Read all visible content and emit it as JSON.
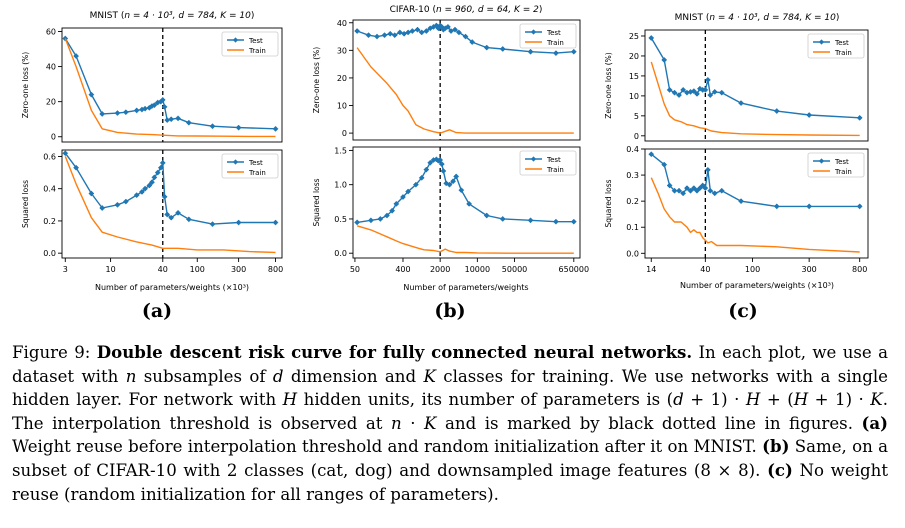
{
  "colors": {
    "test": "#1f77b4",
    "train": "#ff7f0e",
    "threshold": "#000000"
  },
  "legend": {
    "test": "Test",
    "train": "Train"
  },
  "panels": [
    {
      "label": "(a)",
      "title_prefix": "MNIST (",
      "title_math": "n = 4 · 10³, d = 784, K = 10",
      "title_suffix": ")",
      "xlabel": "Number of parameters/weights (×10³)"
    },
    {
      "label": "(b)",
      "title_prefix": "CIFAR-10 (",
      "title_math": "n = 960, d = 64, K = 2",
      "title_suffix": ")",
      "xlabel": "Number of parameters/weights"
    },
    {
      "label": "(c)",
      "title_prefix": "MNIST (",
      "title_math": "n = 4 · 10³, d = 784, K = 10",
      "title_suffix": ")",
      "xlabel": "Number of parameters/weights (×10³)"
    }
  ],
  "chart_data": [
    {
      "type": "line",
      "panel": "a-top",
      "title": "MNIST (n = 4 · 10³, d = 784, K = 10)",
      "ylabel": "Zero-one loss (%)",
      "xscale": "log",
      "xlim": [
        2.75,
        950
      ],
      "ylim": [
        -3,
        62
      ],
      "xticks": [],
      "yticks": [
        0,
        20,
        40,
        60
      ],
      "threshold_x": 40,
      "legend_position": "top-right",
      "series": [
        {
          "name": "Test",
          "marker": true,
          "x": [
            3,
            4,
            6,
            8,
            12,
            15,
            20,
            23,
            25,
            28,
            30,
            32,
            35,
            38,
            40,
            42,
            45,
            50,
            60,
            80,
            150,
            300,
            800
          ],
          "y": [
            56,
            46,
            24,
            13,
            13.5,
            14,
            15,
            15.5,
            16,
            16.5,
            17.5,
            18,
            19.5,
            20,
            21,
            17,
            9.5,
            10,
            10.5,
            8,
            6,
            5.2,
            4.5
          ]
        },
        {
          "name": "Train",
          "marker": false,
          "x": [
            3,
            4,
            6,
            8,
            12,
            20,
            30,
            40,
            60,
            100,
            200,
            400,
            800
          ],
          "y": [
            56,
            40,
            15,
            4.5,
            2.5,
            1.5,
            1.2,
            0.9,
            0.5,
            0.4,
            0.3,
            0.2,
            0.2
          ]
        }
      ]
    },
    {
      "type": "line",
      "panel": "a-bottom",
      "ylabel": "Squared loss",
      "xscale": "log",
      "xlim": [
        2.75,
        950
      ],
      "ylim": [
        -0.03,
        0.64
      ],
      "xticks": [
        3,
        10,
        40,
        100,
        300,
        800
      ],
      "yticks": [
        0.0,
        0.2,
        0.4,
        0.6
      ],
      "ytick_format": "1",
      "threshold_x": 40,
      "legend_position": "top-right",
      "series": [
        {
          "name": "Test",
          "marker": true,
          "x": [
            3,
            4,
            6,
            8,
            12,
            15,
            20,
            23,
            25,
            28,
            30,
            32,
            35,
            38,
            40,
            42,
            45,
            50,
            60,
            80,
            150,
            300,
            800
          ],
          "y": [
            0.62,
            0.53,
            0.37,
            0.28,
            0.3,
            0.32,
            0.36,
            0.38,
            0.4,
            0.42,
            0.44,
            0.47,
            0.5,
            0.53,
            0.56,
            0.35,
            0.24,
            0.22,
            0.25,
            0.21,
            0.18,
            0.19,
            0.19
          ]
        },
        {
          "name": "Train",
          "marker": false,
          "x": [
            3,
            4,
            6,
            8,
            12,
            20,
            30,
            40,
            50,
            60,
            100,
            200,
            400,
            800
          ],
          "y": [
            0.6,
            0.43,
            0.22,
            0.13,
            0.1,
            0.07,
            0.05,
            0.03,
            0.03,
            0.03,
            0.02,
            0.02,
            0.01,
            0.005
          ]
        }
      ]
    },
    {
      "type": "line",
      "panel": "b-top",
      "title": "CIFAR-10 (n = 960, d = 64, K = 2)",
      "ylabel": "Zero-one loss (%)",
      "xscale": "log",
      "xlim": [
        46,
        850000
      ],
      "ylim": [
        -2.5,
        41
      ],
      "xticks": [],
      "yticks": [
        0,
        10,
        20,
        30,
        40
      ],
      "threshold_x": 2000,
      "legend_position": "top-right",
      "series": [
        {
          "name": "Test",
          "marker": true,
          "x": [
            55,
            90,
            130,
            180,
            230,
            280,
            350,
            420,
            500,
            600,
            750,
            900,
            1100,
            1300,
            1500,
            1700,
            1850,
            2000,
            2150,
            2300,
            2500,
            2800,
            3200,
            3800,
            4500,
            6000,
            8000,
            15000,
            30000,
            100000,
            300000,
            650000
          ],
          "y": [
            37,
            35.5,
            35,
            35.5,
            36,
            35.5,
            36.5,
            36,
            36.5,
            37,
            37.5,
            36.5,
            37,
            38,
            38.5,
            39,
            38,
            39,
            38.5,
            37.5,
            38,
            38.5,
            37,
            37.5,
            36.5,
            35,
            33,
            31,
            30.5,
            29.5,
            29,
            29.5
          ]
        },
        {
          "name": "Train",
          "marker": false,
          "x": [
            55,
            100,
            200,
            300,
            400,
            500,
            700,
            1000,
            1500,
            2000,
            3000,
            4000,
            6000,
            10000,
            50000,
            650000
          ],
          "y": [
            31,
            24,
            18,
            14,
            10,
            8,
            3,
            1.5,
            0.5,
            0,
            1.2,
            0.2,
            0,
            0,
            0,
            0
          ]
        }
      ]
    },
    {
      "type": "line",
      "panel": "b-bottom",
      "ylabel": "Squared loss",
      "xscale": "log",
      "xlim": [
        46,
        850000
      ],
      "ylim": [
        -0.07,
        1.55
      ],
      "xticks": [
        50,
        400,
        2000,
        10000,
        50000,
        650000
      ],
      "yticks": [
        0.0,
        0.5,
        1.0,
        1.5
      ],
      "ytick_format": "1",
      "threshold_x": 2000,
      "legend_position": "top-right",
      "series": [
        {
          "name": "Test",
          "marker": true,
          "x": [
            55,
            100,
            150,
            200,
            250,
            300,
            400,
            500,
            700,
            900,
            1100,
            1300,
            1500,
            1700,
            1850,
            2000,
            2150,
            2300,
            2600,
            3000,
            3500,
            4000,
            5000,
            7000,
            15000,
            30000,
            100000,
            300000,
            650000
          ],
          "y": [
            0.45,
            0.48,
            0.5,
            0.55,
            0.62,
            0.72,
            0.82,
            0.9,
            1.0,
            1.1,
            1.22,
            1.32,
            1.36,
            1.37,
            1.35,
            1.36,
            1.3,
            1.2,
            1.02,
            1.0,
            1.05,
            1.12,
            0.92,
            0.72,
            0.55,
            0.5,
            0.48,
            0.46,
            0.46
          ]
        },
        {
          "name": "Train",
          "marker": false,
          "x": [
            55,
            100,
            200,
            300,
            400,
            600,
            800,
            1000,
            1500,
            2000,
            2500,
            3000,
            3500,
            4000,
            6000,
            10000,
            50000,
            650000
          ],
          "y": [
            0.4,
            0.34,
            0.24,
            0.18,
            0.14,
            0.1,
            0.07,
            0.05,
            0.04,
            0.02,
            0.06,
            0.03,
            0.02,
            0.01,
            0.01,
            0.005,
            0,
            0
          ]
        }
      ]
    },
    {
      "type": "line",
      "panel": "c-top",
      "title": "MNIST (n = 4 · 10³, d = 784, K = 10)",
      "ylabel": "Zero-one loss (%)",
      "xscale": "log",
      "xlim": [
        12.4,
        940
      ],
      "ylim": [
        -1.3,
        26.5
      ],
      "xticks": [],
      "yticks": [
        0,
        5,
        10,
        15,
        20,
        25
      ],
      "threshold_x": 40,
      "legend_position": "top-right",
      "series": [
        {
          "name": "Test",
          "marker": true,
          "x": [
            14,
            18,
            20,
            22,
            24,
            26,
            28,
            30,
            32,
            34,
            36,
            38,
            40,
            42,
            44,
            48,
            55,
            80,
            160,
            300,
            800
          ],
          "y": [
            24.5,
            19,
            11.5,
            10.8,
            10.2,
            11.5,
            10.8,
            11,
            11.2,
            10.5,
            11.8,
            11.5,
            11.5,
            14,
            10.2,
            11,
            10.8,
            8.2,
            6.2,
            5.2,
            4.5
          ]
        },
        {
          "name": "Train",
          "marker": false,
          "x": [
            14,
            16,
            18,
            20,
            22,
            25,
            28,
            32,
            36,
            40,
            45,
            55,
            80,
            160,
            300,
            800
          ],
          "y": [
            18.5,
            13,
            8,
            5,
            4,
            3.5,
            2.8,
            2.5,
            2,
            1.8,
            1.2,
            0.8,
            0.5,
            0.3,
            0.2,
            0.1
          ]
        }
      ]
    },
    {
      "type": "line",
      "panel": "c-bottom",
      "ylabel": "Squared loss",
      "xscale": "log",
      "xlim": [
        12.4,
        940
      ],
      "ylim": [
        -0.018,
        0.4
      ],
      "xticks": [
        14,
        40,
        100,
        300,
        800
      ],
      "yticks": [
        0.0,
        0.1,
        0.2,
        0.3,
        0.4
      ],
      "ytick_format": "1",
      "threshold_x": 40,
      "legend_position": "top-right",
      "series": [
        {
          "name": "Test",
          "marker": true,
          "x": [
            14,
            18,
            20,
            22,
            24,
            26,
            28,
            30,
            32,
            34,
            36,
            38,
            40,
            42,
            44,
            48,
            55,
            80,
            160,
            300,
            800
          ],
          "y": [
            0.38,
            0.34,
            0.26,
            0.24,
            0.24,
            0.23,
            0.25,
            0.24,
            0.25,
            0.24,
            0.25,
            0.26,
            0.25,
            0.32,
            0.24,
            0.23,
            0.24,
            0.2,
            0.18,
            0.18,
            0.18
          ]
        },
        {
          "name": "Train",
          "marker": false,
          "x": [
            14,
            16,
            18,
            20,
            22,
            25,
            28,
            30,
            32,
            34,
            36,
            38,
            40,
            42,
            45,
            50,
            80,
            160,
            300,
            800
          ],
          "y": [
            0.29,
            0.23,
            0.17,
            0.14,
            0.12,
            0.12,
            0.1,
            0.08,
            0.09,
            0.08,
            0.08,
            0.06,
            0.05,
            0.04,
            0.045,
            0.03,
            0.03,
            0.025,
            0.015,
            0.005
          ]
        }
      ]
    }
  ],
  "caption": {
    "fig_label": "Figure 9: ",
    "bold_title": "Double descent risk curve for fully connected neural networks.",
    "s1a": " In each plot, we use a dataset with ",
    "var_n": "n",
    "s1b": " subsamples of ",
    "var_d": "d",
    "s1c": " dimension and ",
    "var_K": "K",
    "s1d": " classes for training. We use networks with a single hidden layer. For network with ",
    "var_H": "H",
    "s2a": " hidden units, its number of parameters is (",
    "var_d2": "d",
    "s2b": " + 1) · ",
    "var_H2": "H",
    "s2c": " + (",
    "var_H3": "H",
    "s2d": " + 1) · ",
    "var_K2": "K",
    "s2e": ". The interpolation threshold is observed at ",
    "var_n2": "n",
    "s2f": " · ",
    "var_K3": "K",
    "s2g": " and is marked by black dotted line in figures. ",
    "lab_a": "(a)",
    "s3": " Weight reuse before interpolation threshold and random initialization after it on MNIST. ",
    "lab_b": "(b)",
    "s4": " Same, on a subset of CIFAR-10 with 2 classes (cat, dog) and downsampled image features (8 × 8). ",
    "lab_c": "(c)",
    "s5": " No weight reuse (random initialization for all ranges of parameters)."
  }
}
